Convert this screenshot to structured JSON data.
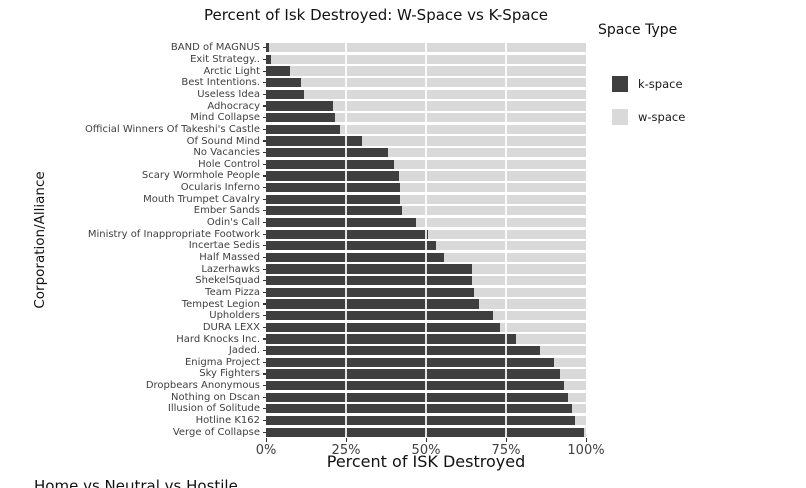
{
  "title": "Percent of Isk Destroyed: W-Space vs K-Space",
  "legend": {
    "title": "Space Type",
    "items": [
      {
        "label": "k-space",
        "color": "#3F3F3F"
      },
      {
        "label": "w-space",
        "color": "#D9D9D9"
      }
    ]
  },
  "axes": {
    "x_title": "Percent of ISK Destroyed",
    "y_title": "Corporation/Alliance",
    "x_ticks": [
      "0%",
      "25%",
      "50%",
      "75%",
      "100%"
    ]
  },
  "clipped_text": "Home vs Neutral vs Hostile",
  "colors": {
    "k_space": "#3F3F3F",
    "w_space": "#D9D9D9",
    "gridline": "#FFFFFF",
    "axis_text": "#404040",
    "title_text": "#111111",
    "background": "#FFFFFF"
  },
  "chart_data": {
    "type": "bar",
    "orientation": "horizontal",
    "stacked": true,
    "title": "Percent of Isk Destroyed: W-Space vs K-Space",
    "xlabel": "Percent of ISK Destroyed",
    "ylabel": "Corporation/Alliance",
    "xlim": [
      0,
      100
    ],
    "x_tick_labels": [
      "0%",
      "25%",
      "50%",
      "75%",
      "100%"
    ],
    "grid": "white vertical major gridlines at 25/50/75 drawn over bars",
    "legend_position": "right",
    "legend_title": "Space Type",
    "categories": [
      "BAND of MAGNUS",
      "Exit Strategy..",
      "Arctic Light",
      "Best Intentions.",
      "Useless Idea",
      "Adhocracy",
      "Mind Collapse",
      "Official Winners Of Takeshi's Castle",
      "Of Sound Mind",
      "No Vacancies",
      "Hole Control",
      "Scary Wormhole People",
      "Ocularis Inferno",
      "Mouth Trumpet Cavalry",
      "Ember Sands",
      "Odin's Call",
      "Ministry of Inappropriate Footwork",
      "Incertae Sedis",
      "Half Massed",
      "Lazerhawks",
      "ShekelSquad",
      "Team Pizza",
      "Tempest Legion",
      "Upholders",
      "DURA LEXX",
      "Hard Knocks Inc.",
      "Jaded.",
      "Enigma Project",
      "Sky Fighters",
      "Dropbears Anonymous",
      "Nothing on Dscan",
      "Illusion of Solitude",
      "Hotline K162",
      "Verge of Collapse"
    ],
    "series": [
      {
        "name": "k-space",
        "color": "#3F3F3F",
        "values": [
          1,
          1.5,
          7.5,
          11,
          12,
          21,
          21.5,
          23,
          30,
          38,
          40,
          41.5,
          42,
          42,
          42.5,
          47,
          50.5,
          53,
          55.5,
          64.5,
          64.5,
          65,
          66.5,
          71,
          73,
          78,
          85.5,
          90,
          92,
          93,
          94.5,
          95.5,
          96.5,
          99.5
        ]
      },
      {
        "name": "w-space",
        "color": "#D9D9D9",
        "values": [
          99,
          98.5,
          92.5,
          89,
          88,
          79,
          78.5,
          77,
          70,
          62,
          60,
          58.5,
          58,
          58,
          57.5,
          53,
          49.5,
          47,
          44.5,
          35.5,
          35.5,
          35,
          33.5,
          29,
          27,
          22,
          14.5,
          10,
          8,
          7,
          5.5,
          4.5,
          3.5,
          0.5
        ]
      }
    ]
  }
}
